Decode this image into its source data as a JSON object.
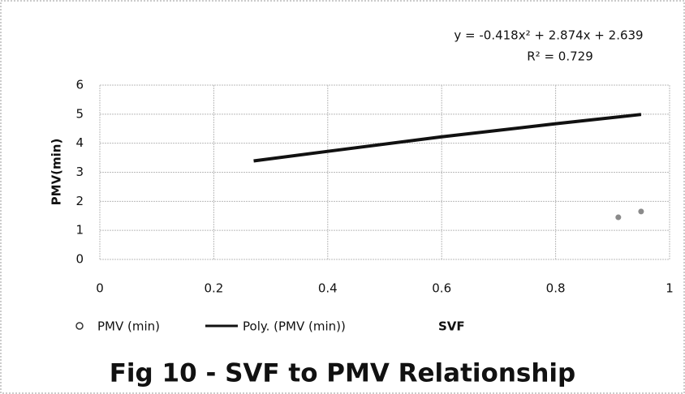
{
  "chart_data": {
    "type": "scatter",
    "title": "Fig 10 - SVF to PMV Relationship",
    "x_label": "SVF",
    "y_label": "PMV(min)",
    "annotations": [
      "y = -0.418x² + 2.874x + 2.639",
      "R² = 0.729"
    ],
    "xlim": [
      0,
      1
    ],
    "xticks": [
      0,
      0.2,
      0.4,
      0.6,
      0.8,
      1
    ],
    "ylim": [
      0,
      6
    ],
    "yticks": [
      0,
      1,
      2,
      3,
      4,
      5,
      6
    ],
    "grid": true,
    "series": [
      {
        "name": "PMV (min)",
        "color": "#8a8a8a",
        "x": [
          0.91,
          0.95
        ],
        "values": [
          1.45,
          1.65
        ]
      },
      {
        "name": "Poly. (PMV (min))",
        "color": "#111111",
        "line": true,
        "x": [
          0.27,
          0.4,
          0.6,
          0.8,
          0.95
        ],
        "values": [
          3.39,
          3.72,
          4.22,
          4.67,
          4.99
        ]
      }
    ]
  }
}
